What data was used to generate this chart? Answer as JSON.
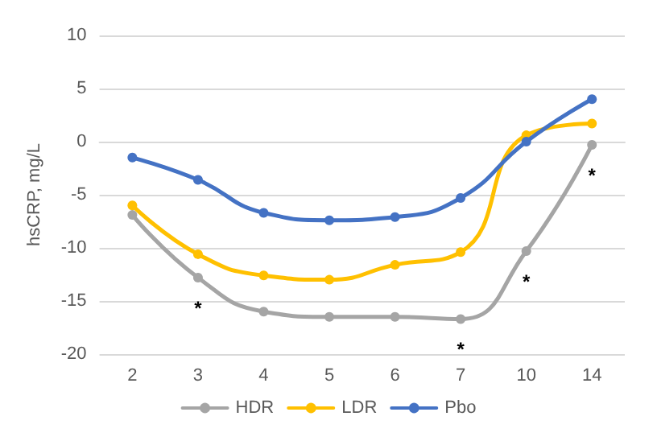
{
  "chart_data": {
    "type": "line",
    "ylabel": "hsCRP, mg/L",
    "categories": [
      "2",
      "3",
      "4",
      "5",
      "6",
      "7",
      "10",
      "14"
    ],
    "series": [
      {
        "name": "HDR",
        "color": "#a5a5a5",
        "values": [
          -6.9,
          -12.8,
          -16,
          -16.5,
          -16.5,
          -16.7,
          -10.3,
          -0.3
        ],
        "value_labels": [
          null,
          "*",
          null,
          null,
          null,
          "*",
          "*",
          "*"
        ]
      },
      {
        "name": "LDR",
        "color": "#ffc000",
        "values": [
          -6,
          -10.6,
          -12.6,
          -13,
          -11.6,
          -10.4,
          0.6,
          1.7
        ]
      },
      {
        "name": "Pbo",
        "color": "#4472c4",
        "values": [
          -1.5,
          -3.6,
          -6.7,
          -7.4,
          -7.1,
          -5.3,
          0,
          4
        ]
      }
    ],
    "ylim": [
      -20,
      10
    ],
    "yticks": [
      -20,
      -15,
      -10,
      -5,
      0,
      5,
      10
    ],
    "grid": "y",
    "legend": "bottom",
    "marker": "circle",
    "line_style": "solid"
  }
}
